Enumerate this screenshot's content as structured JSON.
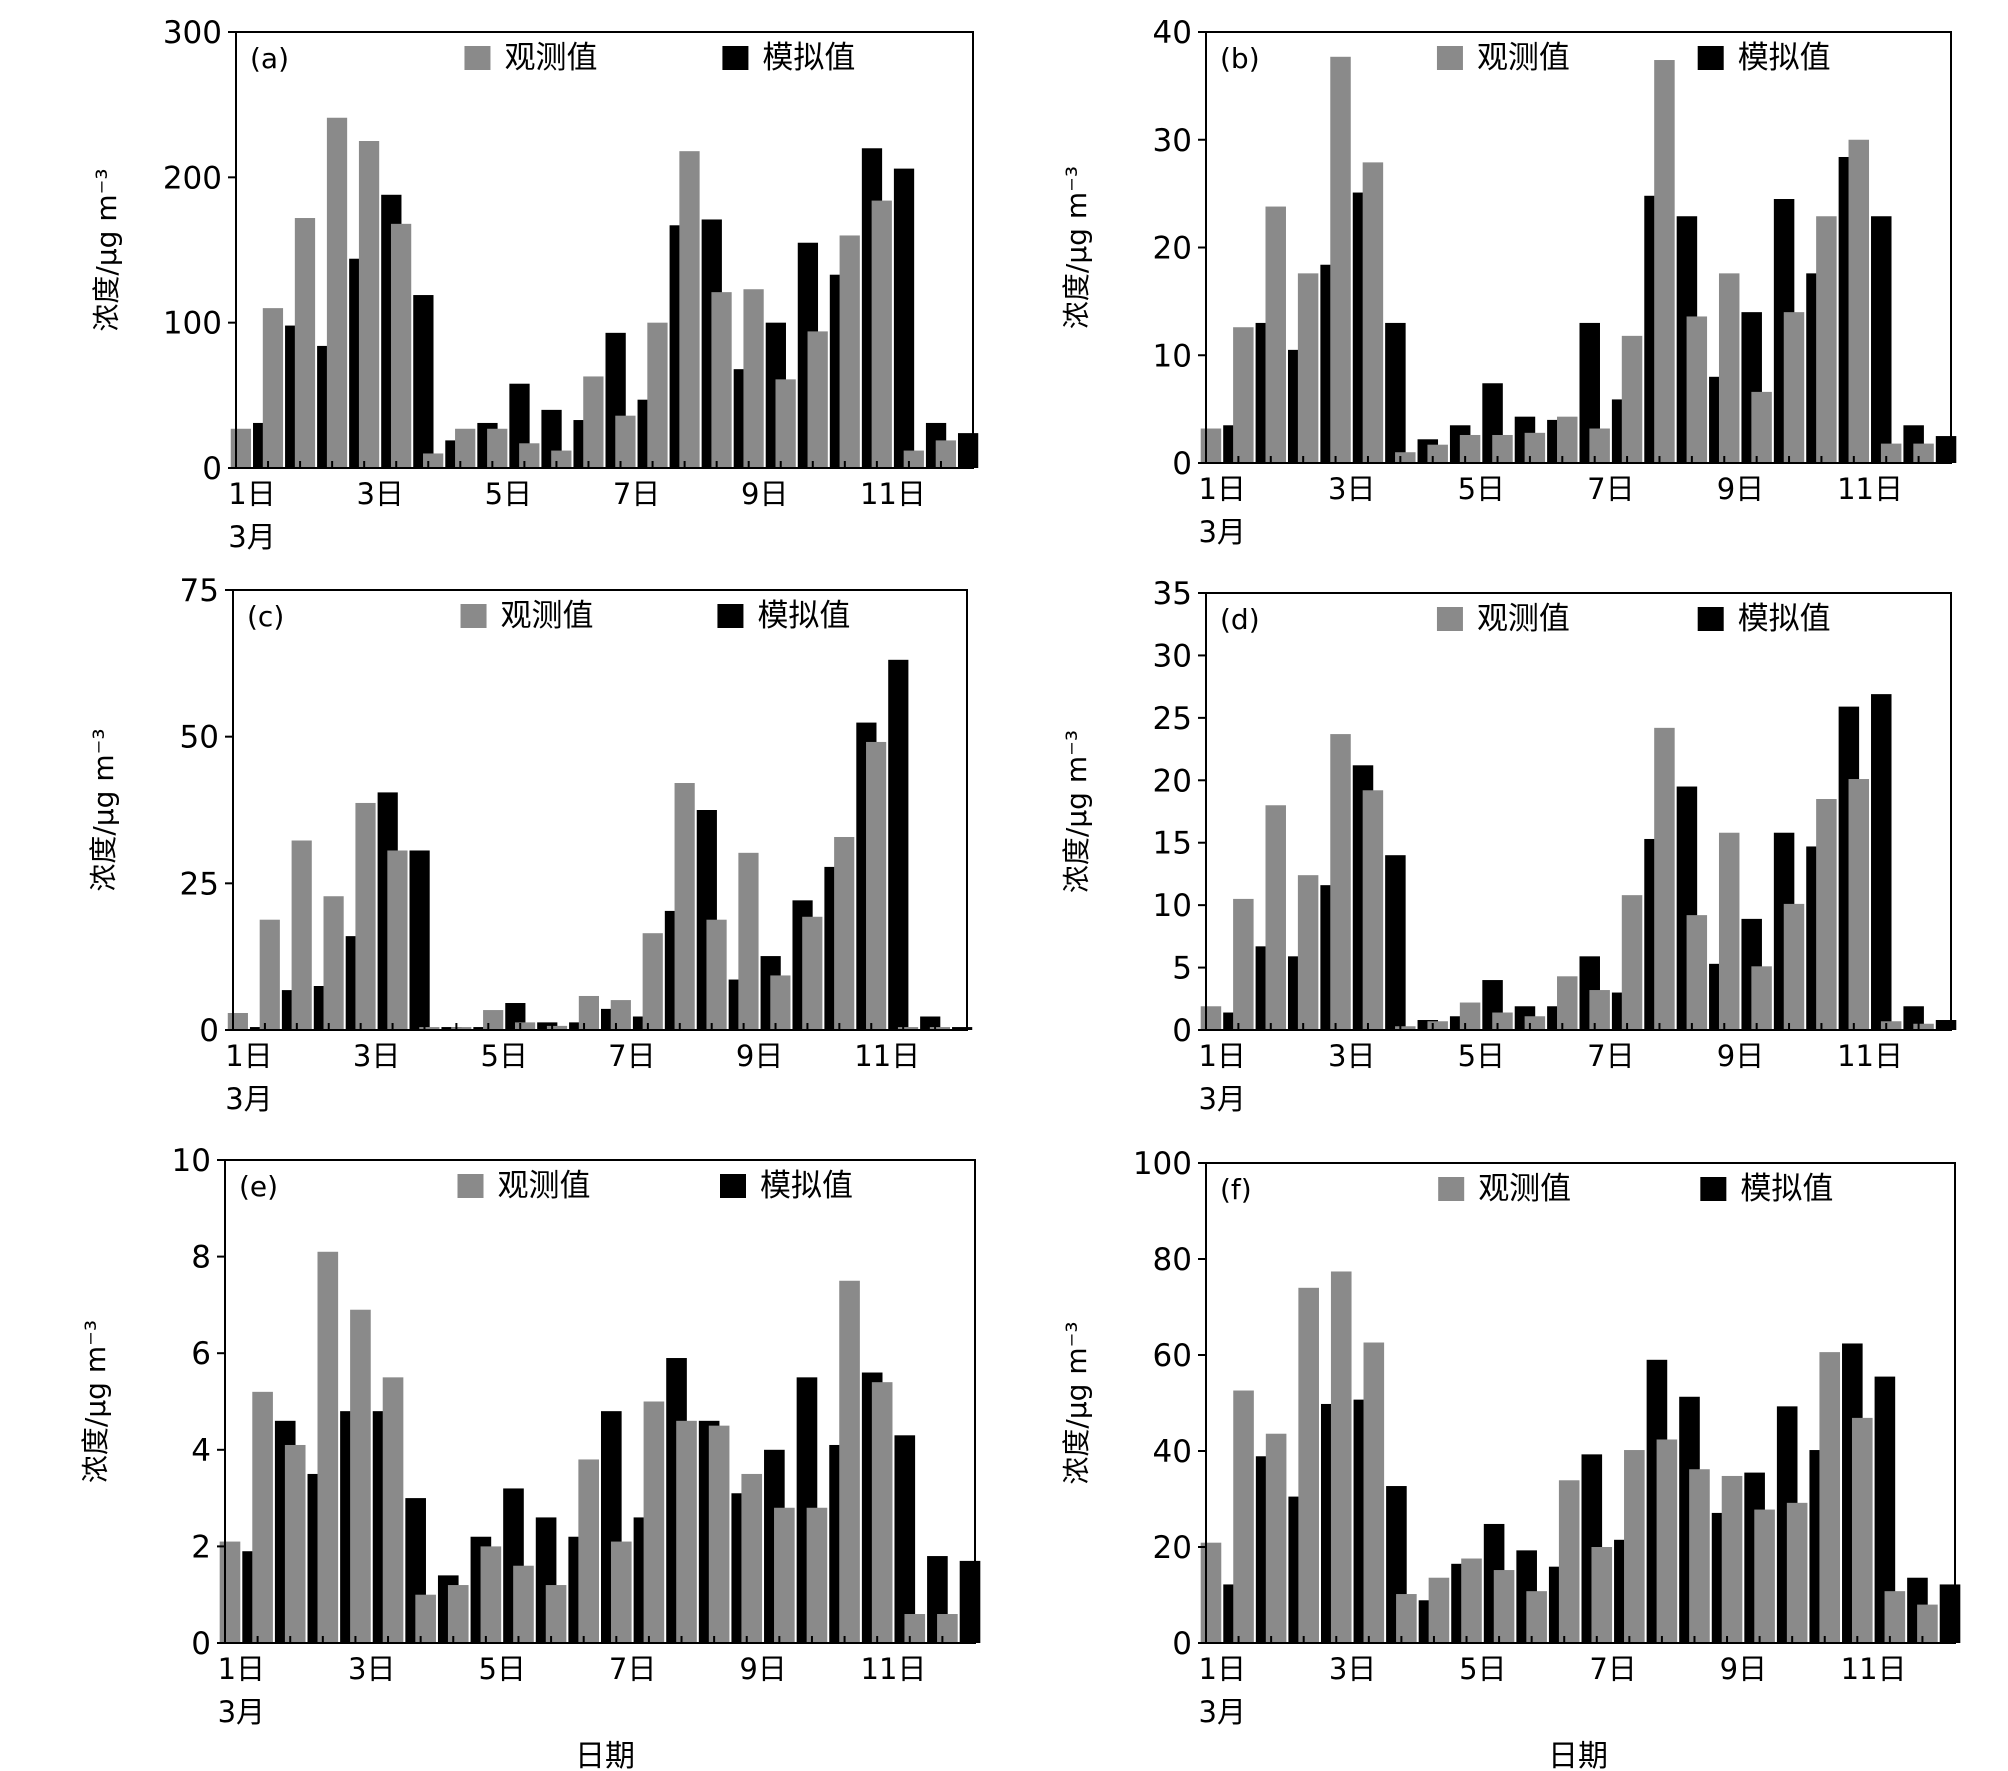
{
  "legend": {
    "observed": "观测值",
    "simulated": "模拟值"
  },
  "colors": {
    "observed": "#8a8a8a",
    "simulated": "#000000"
  },
  "x_tick_labels": [
    "1日",
    "3日",
    "5日",
    "7日",
    "9日",
    "11日"
  ],
  "month_label": "3月",
  "ylabel": "浓度/μg m⁻³",
  "xlabel": "日期",
  "chart_data": [
    {
      "type": "bar",
      "panel": "(a)",
      "ylim": [
        0,
        300
      ],
      "yticks": [
        0,
        100,
        200,
        300
      ],
      "x": [
        1,
        1.5,
        2,
        2.5,
        3,
        3.5,
        4,
        4.5,
        5,
        5.5,
        6,
        6.5,
        7,
        7.5,
        8,
        8.5,
        9,
        9.5,
        10,
        10.5,
        11,
        11.5
      ],
      "series": [
        {
          "name": "观测值",
          "values": [
            27,
            110,
            172,
            241,
            225,
            168,
            10,
            27,
            27,
            17,
            12,
            63,
            36,
            100,
            218,
            121,
            123,
            61,
            94,
            160,
            184,
            12
          ]
        },
        {
          "name": "模拟值",
          "values": [
            31,
            98,
            84,
            144,
            188,
            119,
            19,
            31,
            58,
            40,
            33,
            93,
            47,
            167,
            171,
            68,
            100,
            155,
            133,
            220,
            206,
            31
          ]
        }
      ],
      "tail": {
        "observed": 19,
        "simulated": 24
      }
    },
    {
      "type": "bar",
      "panel": "(b)",
      "ylim": [
        0,
        40
      ],
      "yticks": [
        0,
        10,
        20,
        30,
        40
      ],
      "x": [
        1,
        1.5,
        2,
        2.5,
        3,
        3.5,
        4,
        4.5,
        5,
        5.5,
        6,
        6.5,
        7,
        7.5,
        8,
        8.5,
        9,
        9.5,
        10,
        10.5,
        11,
        11.5
      ],
      "series": [
        {
          "name": "观测值",
          "values": [
            3.2,
            12.6,
            23.8,
            17.6,
            37.7,
            27.9,
            1.0,
            1.7,
            2.6,
            2.6,
            2.8,
            4.3,
            3.2,
            11.8,
            37.4,
            13.6,
            17.6,
            6.6,
            14.0,
            22.9,
            30.0,
            1.8
          ]
        },
        {
          "name": "模拟值",
          "values": [
            3.5,
            13.0,
            10.5,
            18.4,
            25.1,
            13.0,
            2.2,
            3.5,
            7.4,
            4.3,
            4.0,
            13.0,
            5.9,
            24.8,
            22.9,
            8.0,
            14.0,
            24.5,
            17.6,
            28.4,
            22.9,
            3.5
          ]
        }
      ],
      "tail": {
        "observed": 1.8,
        "simulated": 2.5
      }
    },
    {
      "type": "bar",
      "panel": "(c)",
      "ylim": [
        0,
        75
      ],
      "yticks": [
        0,
        25,
        50,
        75
      ],
      "x": [
        1,
        1.5,
        2,
        2.5,
        3,
        3.5,
        4,
        4.5,
        5,
        5.5,
        6,
        6.5,
        7,
        7.5,
        8,
        8.5,
        9,
        9.5,
        10,
        10.5,
        11,
        11.5
      ],
      "series": [
        {
          "name": "观测值",
          "values": [
            2.9,
            18.8,
            32.3,
            22.8,
            38.7,
            30.6,
            0.5,
            0.5,
            3.4,
            1.3,
            0.7,
            5.8,
            5.1,
            16.5,
            42.1,
            18.8,
            30.2,
            9.3,
            19.3,
            32.9,
            49.1,
            0.5
          ]
        },
        {
          "name": "模拟值",
          "values": [
            0.5,
            6.8,
            7.5,
            16.0,
            40.5,
            30.6,
            0.5,
            0.5,
            4.6,
            1.3,
            1.3,
            3.6,
            2.3,
            20.3,
            37.5,
            8.6,
            12.6,
            22.1,
            27.8,
            52.4,
            63.1,
            2.3
          ]
        }
      ],
      "tail": {
        "observed": 0.5,
        "simulated": 0.5
      }
    },
    {
      "type": "bar",
      "panel": "(d)",
      "ylim": [
        0,
        35
      ],
      "yticks": [
        0,
        5,
        10,
        15,
        20,
        25,
        30,
        35
      ],
      "x": [
        1,
        1.5,
        2,
        2.5,
        3,
        3.5,
        4,
        4.5,
        5,
        5.5,
        6,
        6.5,
        7,
        7.5,
        8,
        8.5,
        9,
        9.5,
        10,
        10.5,
        11,
        11.5
      ],
      "series": [
        {
          "name": "观测值",
          "values": [
            1.9,
            10.5,
            18.0,
            12.4,
            23.7,
            19.2,
            0.3,
            0.7,
            2.2,
            1.4,
            1.1,
            4.3,
            3.2,
            10.8,
            24.2,
            9.2,
            15.8,
            5.1,
            10.1,
            18.5,
            20.1,
            0.7
          ]
        },
        {
          "name": "模拟值",
          "values": [
            1.4,
            6.7,
            5.9,
            11.6,
            21.2,
            14.0,
            0.8,
            1.1,
            4.0,
            1.9,
            1.9,
            5.9,
            3.0,
            15.3,
            19.5,
            5.3,
            8.9,
            15.8,
            14.7,
            25.9,
            26.9,
            1.9
          ]
        }
      ],
      "tail": {
        "observed": 0.5,
        "simulated": 0.8
      }
    },
    {
      "type": "bar",
      "panel": "(e)",
      "ylim": [
        0,
        10
      ],
      "yticks": [
        0,
        2,
        4,
        6,
        8,
        10
      ],
      "x": [
        1,
        1.5,
        2,
        2.5,
        3,
        3.5,
        4,
        4.5,
        5,
        5.5,
        6,
        6.5,
        7,
        7.5,
        8,
        8.5,
        9,
        9.5,
        10,
        10.5,
        11,
        11.5
      ],
      "series": [
        {
          "name": "观测值",
          "values": [
            2.1,
            5.2,
            4.1,
            8.1,
            6.9,
            5.5,
            1.0,
            1.2,
            2.0,
            1.6,
            1.2,
            3.8,
            2.1,
            5.0,
            4.6,
            4.5,
            3.5,
            2.8,
            2.8,
            7.5,
            5.4,
            0.6
          ]
        },
        {
          "name": "模拟值",
          "values": [
            1.9,
            4.6,
            3.5,
            4.8,
            4.8,
            3.0,
            1.4,
            2.2,
            3.2,
            2.6,
            2.2,
            4.8,
            2.6,
            5.9,
            4.6,
            3.1,
            4.0,
            5.5,
            4.1,
            5.6,
            4.3,
            1.8
          ]
        }
      ],
      "tail": {
        "observed": 0.6,
        "simulated": 1.7
      }
    },
    {
      "type": "bar",
      "panel": "(f)",
      "ylim": [
        0,
        100
      ],
      "yticks": [
        0,
        20,
        40,
        60,
        80,
        100
      ],
      "x": [
        1,
        1.5,
        2,
        2.5,
        3,
        3.5,
        4,
        4.5,
        5,
        5.5,
        6,
        6.5,
        7,
        7.5,
        8,
        8.5,
        9,
        9.5,
        10,
        10.5,
        11,
        11.5
      ],
      "series": [
        {
          "name": "观测值",
          "values": [
            20.9,
            52.6,
            43.6,
            74.0,
            77.4,
            62.6,
            10.2,
            13.6,
            17.6,
            15.2,
            10.8,
            33.9,
            20.0,
            40.2,
            42.4,
            36.2,
            34.8,
            27.8,
            29.2,
            60.6,
            46.9,
            10.8
          ]
        },
        {
          "name": "模拟值",
          "values": [
            12.2,
            38.9,
            30.5,
            49.8,
            50.7,
            32.7,
            8.9,
            16.5,
            24.8,
            19.3,
            15.9,
            39.3,
            21.5,
            59.0,
            51.3,
            27.1,
            35.5,
            49.3,
            40.2,
            62.4,
            55.5,
            13.6
          ]
        }
      ],
      "tail": {
        "observed": 8.0,
        "simulated": 12.2
      }
    }
  ]
}
